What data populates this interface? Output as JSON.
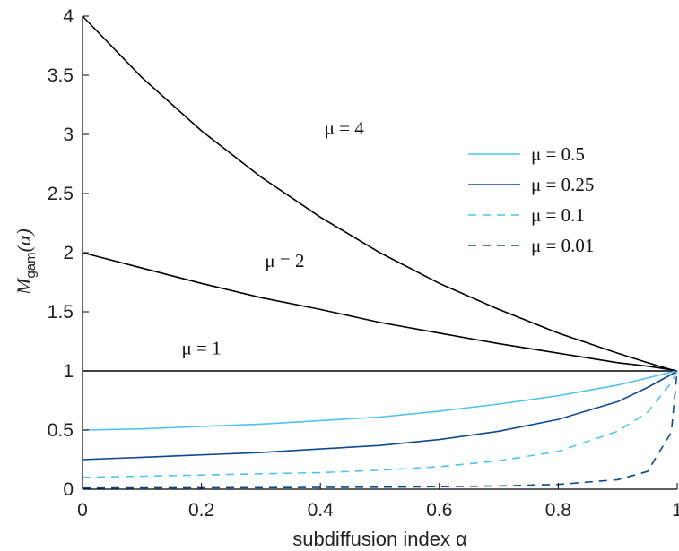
{
  "chart_data": {
    "type": "line",
    "title": "",
    "xlabel": "subdiffusion index α",
    "ylabel": {
      "main": "M",
      "sub": "gam",
      "arg": "(α)"
    },
    "xlim": [
      0,
      1
    ],
    "ylim": [
      0,
      4
    ],
    "xticks": [
      0,
      0.2,
      0.4,
      0.6,
      0.8,
      1
    ],
    "xtick_labels": [
      "0",
      "0.2",
      "0.4",
      "0.6",
      "0.8",
      "1"
    ],
    "yticks": [
      0,
      0.5,
      1,
      1.5,
      2,
      2.5,
      3,
      3.5,
      4
    ],
    "ytick_labels": [
      "0",
      "0.5",
      "1",
      "1.5",
      "2",
      "2.5",
      "3",
      "3.5",
      "4"
    ],
    "grid": false,
    "legend_position": "top-right",
    "x": [
      0,
      0.1,
      0.2,
      0.3,
      0.4,
      0.5,
      0.6,
      0.7,
      0.8,
      0.9,
      0.95,
      0.99,
      1
    ],
    "series": [
      {
        "name": "μ = 4",
        "mu": 4,
        "color": "#000000",
        "dash": "solid",
        "legend": false,
        "label": "μ = 4",
        "values": [
          4.0,
          3.48,
          3.03,
          2.64,
          2.3,
          2.0,
          1.74,
          1.52,
          1.32,
          1.15,
          1.07,
          1.01,
          1.0
        ]
      },
      {
        "name": "μ = 2",
        "mu": 2,
        "color": "#000000",
        "dash": "solid",
        "legend": false,
        "label": "μ = 2",
        "values": [
          2.0,
          1.87,
          1.74,
          1.62,
          1.52,
          1.41,
          1.32,
          1.23,
          1.15,
          1.07,
          1.04,
          1.01,
          1.0
        ]
      },
      {
        "name": "μ = 1",
        "mu": 1,
        "color": "#000000",
        "dash": "solid",
        "legend": false,
        "label": "μ = 1",
        "values": [
          1,
          1,
          1,
          1,
          1,
          1,
          1,
          1,
          1,
          1,
          1,
          1,
          1
        ]
      },
      {
        "name": "μ = 0.5",
        "mu": 0.5,
        "color": "#4fc3f0",
        "dash": "solid",
        "legend": true,
        "values": [
          0.5,
          0.51,
          0.53,
          0.55,
          0.58,
          0.61,
          0.66,
          0.72,
          0.79,
          0.88,
          0.94,
          0.99,
          1.0
        ]
      },
      {
        "name": "μ = 0.25",
        "mu": 0.25,
        "color": "#0b4a8f",
        "dash": "solid",
        "legend": true,
        "values": [
          0.25,
          0.27,
          0.29,
          0.31,
          0.34,
          0.37,
          0.42,
          0.49,
          0.59,
          0.74,
          0.86,
          0.97,
          1.0
        ]
      },
      {
        "name": "μ = 0.1",
        "mu": 0.1,
        "color": "#4fc3f0",
        "dash": "dashed",
        "legend": true,
        "values": [
          0.1,
          0.11,
          0.12,
          0.13,
          0.14,
          0.16,
          0.19,
          0.24,
          0.32,
          0.49,
          0.65,
          0.9,
          1.0
        ]
      },
      {
        "name": "μ = 0.01",
        "mu": 0.01,
        "color": "#0b4a8f",
        "dash": "dashed",
        "legend": true,
        "values": [
          0.01,
          0.011,
          0.012,
          0.013,
          0.015,
          0.017,
          0.021,
          0.027,
          0.04,
          0.08,
          0.15,
          0.48,
          1.0
        ]
      }
    ],
    "annotations": [
      {
        "text": "μ = 4",
        "x": 0.44,
        "y": 3.0
      },
      {
        "text": "μ = 2",
        "x": 0.34,
        "y": 1.88
      },
      {
        "text": "μ = 1",
        "x": 0.2,
        "y": 1.14
      }
    ]
  }
}
